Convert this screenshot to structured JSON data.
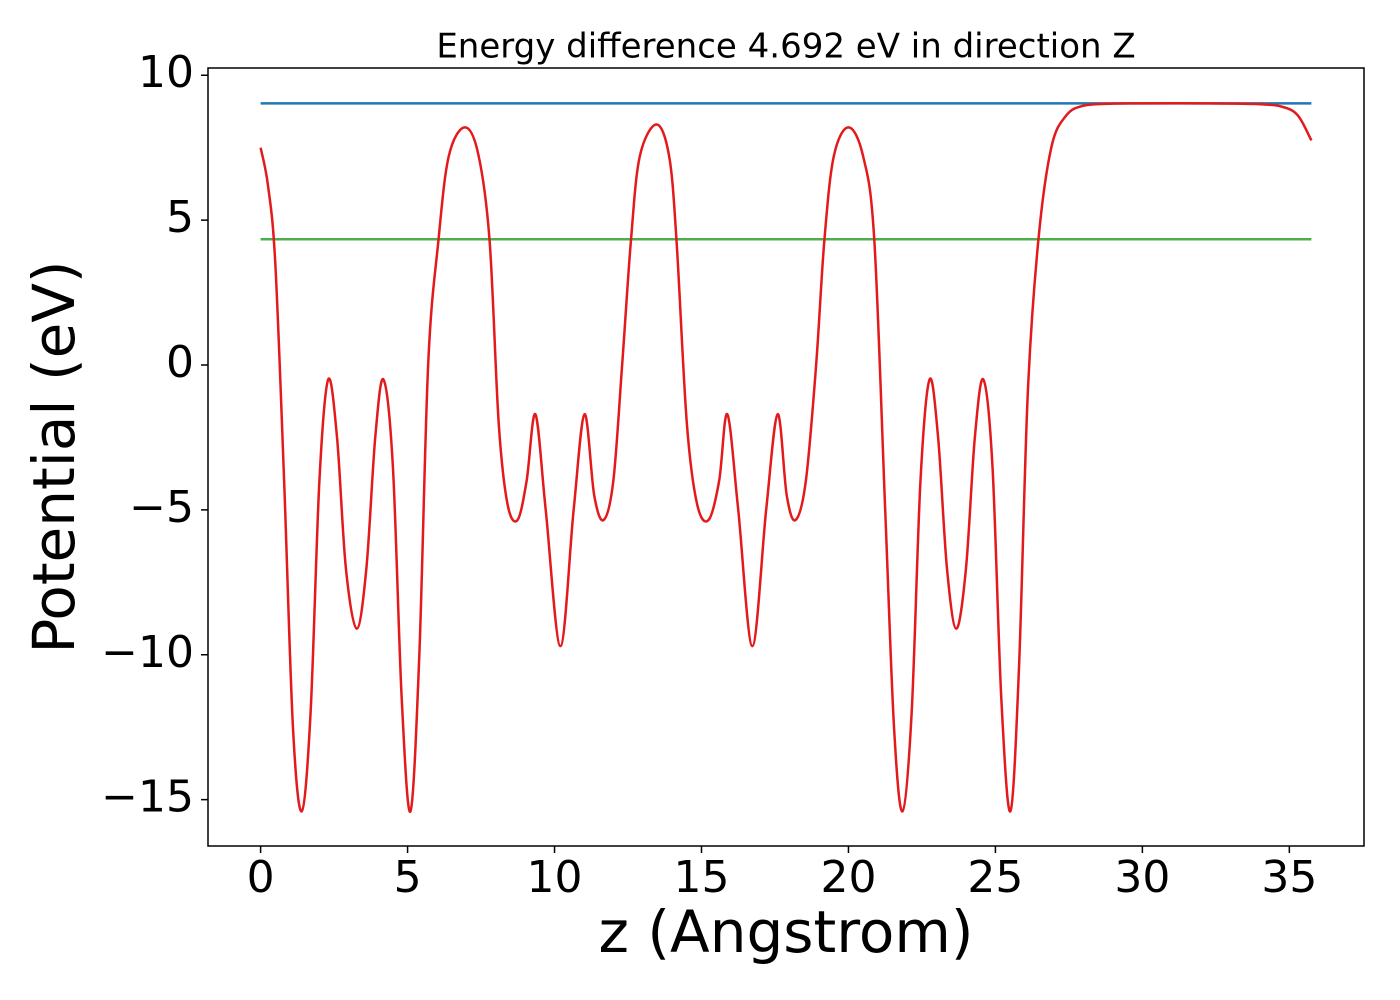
{
  "chart_data": {
    "type": "line",
    "title": "Energy difference 4.692 eV in direction Z",
    "xlabel": "z (Angstrom)",
    "ylabel": "Potential (eV)",
    "series": [
      {
        "color": "#1f77b4",
        "x": [
          0,
          35.75
        ],
        "values": [
          9.03,
          9.03
        ]
      },
      {
        "color": "#4daf4a",
        "x": [
          0,
          35.75
        ],
        "values": [
          4.338,
          4.338
        ]
      },
      {
        "color": "#e31a1c",
        "x": [
          0,
          0.25,
          0.5,
          0.8,
          1.1,
          1.4,
          1.7,
          2.0,
          2.3,
          2.6,
          2.9,
          3.27,
          3.6,
          3.9,
          4.18,
          4.5,
          4.8,
          5.1,
          5.4,
          5.7,
          6.05,
          6.4,
          6.94,
          7.4,
          7.79,
          8.1,
          8.4,
          8.74,
          9.05,
          9.35,
          9.7,
          10.2,
          10.65,
          11.02,
          11.35,
          11.67,
          12.0,
          12.3,
          12.6,
          12.9,
          13.47,
          13.9,
          14.15,
          14.5,
          14.85,
          15.24,
          15.6,
          15.88,
          16.25,
          16.73,
          17.2,
          17.59,
          17.9,
          18.2,
          18.55,
          18.9,
          19.18,
          19.5,
          20.0,
          20.5,
          20.88,
          21.25,
          21.55,
          21.84,
          22.15,
          22.45,
          22.76,
          23.05,
          23.35,
          23.67,
          24.0,
          24.3,
          24.59,
          24.9,
          25.2,
          25.51,
          25.8,
          26.1,
          26.46,
          26.9,
          27.4,
          28.0,
          29,
          30,
          32,
          34,
          34.8,
          35.3,
          35.75
        ],
        "values": [
          7.5,
          6.2,
          3.5,
          -4,
          -12.5,
          -15.4,
          -12,
          -4,
          -0.5,
          -2.5,
          -7,
          -9.1,
          -7,
          -2.5,
          -0.5,
          -3.5,
          -11.5,
          -15.4,
          -10,
          0,
          4.3,
          7.2,
          8.2,
          7.3,
          4.3,
          -2,
          -4.8,
          -5.35,
          -4,
          -1.7,
          -5,
          -9.7,
          -5,
          -1.7,
          -4.5,
          -5.35,
          -4,
          0,
          4.3,
          7.2,
          8.3,
          7.2,
          4.3,
          -2,
          -4.8,
          -5.35,
          -4,
          -1.7,
          -5,
          -9.7,
          -5,
          -1.7,
          -4.5,
          -5.35,
          -4,
          0,
          4.3,
          7.2,
          8.2,
          7.2,
          4.3,
          -5,
          -12.5,
          -15.4,
          -12,
          -4,
          -0.5,
          -2.5,
          -7,
          -9.1,
          -7,
          -2.5,
          -0.5,
          -3.5,
          -11.5,
          -15.4,
          -10.5,
          -1,
          4.3,
          7.5,
          8.6,
          8.95,
          9.02,
          9.03,
          9.03,
          9.0,
          8.9,
          8.6,
          7.75
        ]
      }
    ],
    "xlim": [
      -1.79,
      37.54
    ],
    "ylim": [
      -16.6,
      10.25
    ],
    "xticks": [
      0,
      5,
      10,
      15,
      20,
      25,
      30,
      35
    ],
    "yticks": [
      {
        "value": -15,
        "label": "−15"
      },
      {
        "value": -10,
        "label": "−10"
      },
      {
        "value": -5,
        "label": "−5"
      },
      0,
      5,
      10
    ],
    "grid": false
  }
}
